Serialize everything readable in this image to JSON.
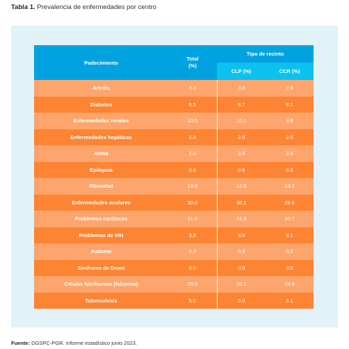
{
  "caption": {
    "label": "Tabla 1.",
    "text": " Prevalencia de enfermedades por centro"
  },
  "table": {
    "headers": {
      "condition": "Padecimiento",
      "total": "Total (%)",
      "facility_type": "Tipo de recinto",
      "clp": "CLP (%)",
      "ccr": "CCR (%)"
    },
    "rows": [
      {
        "name": "Artritis",
        "total": "3.0",
        "clp": "3.0",
        "ccr": "2.9"
      },
      {
        "name": "Diabetes",
        "total": "8.5",
        "clp": "8.7",
        "ccr": "8.1"
      },
      {
        "name": "Enfermedades renales",
        "total": "10.0",
        "clp": "10.2",
        "ccr": "9.8"
      },
      {
        "name": "Enfermedades hepáticas",
        "total": "2.0",
        "clp": "2.0",
        "ccr": "2.0"
      },
      {
        "name": "Asma",
        "total": "2.0",
        "clp": "2.0",
        "ccr": "2.0"
      },
      {
        "name": "Epilepsia",
        "total": "0.6",
        "clp": "0.6",
        "ccr": "0.5"
      },
      {
        "name": "Obesidad",
        "total": "13.0",
        "clp": "12.8",
        "ccr": "13.2"
      },
      {
        "name": "Enfermedades oculares",
        "total": "30.0",
        "clp": "30.1",
        "ccr": "29.6"
      },
      {
        "name": "Problemas cardiacos",
        "total": "31.0",
        "clp": "31.0",
        "ccr": "30.7"
      },
      {
        "name": "Problemas de VIH",
        "total": "3.0",
        "clp": "3.0",
        "ccr": "3.1"
      },
      {
        "name": "Autismo",
        "total": "0.3",
        "clp": "0.3",
        "ccr": "0.2"
      },
      {
        "name": "Síndrome de Down",
        "total": "0.0",
        "clp": "0.0",
        "ccr": "0.0"
      },
      {
        "name": "Células falciformes (falcemia)",
        "total": "25.0",
        "clp": "25.1",
        "ccr": "24.8"
      },
      {
        "name": "Tuberculosis",
        "total": "5.0",
        "clp": "5.0",
        "ccr": "5.1"
      }
    ]
  },
  "footer": {
    "label": "Fuente:",
    "text": " DGSPC-PGR. Informe estadístico junio 2023."
  },
  "colors": {
    "header": "#00a3df",
    "subheader": "#0cc0ef",
    "row_light": "#fea56d",
    "row_dark": "#fd8433",
    "panel": "#e1f2f9"
  }
}
